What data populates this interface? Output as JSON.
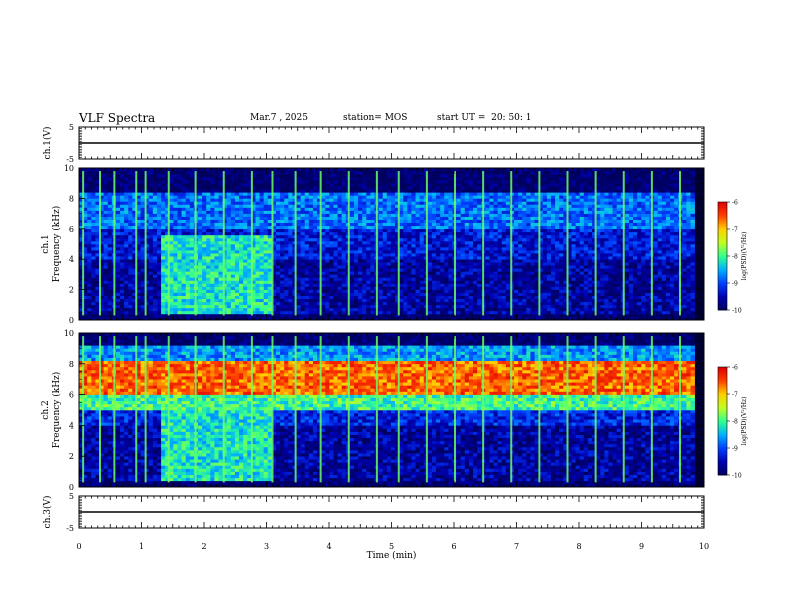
{
  "header": {
    "title": "VLF Spectra",
    "date": "Mar.7 , 2025",
    "station": "station= MOS",
    "start_ut": "start UT =  20: 50: 1"
  },
  "colors": {
    "spectrum_colormap": [
      "#000060",
      "#0000b0",
      "#0040ff",
      "#00b0ff",
      "#30ff90",
      "#c0ff20",
      "#ffd000",
      "#ff4000",
      "#e00000"
    ],
    "line": "#000000",
    "background": "#ffffff"
  },
  "chart_data": [
    {
      "type": "line",
      "panel": "ch1-voltage",
      "ylabel": "ch.1(V)",
      "ylim": [
        -5,
        5
      ],
      "yticks": [
        "5",
        "-5"
      ],
      "x": [
        0,
        10
      ],
      "values": [
        0,
        0
      ]
    },
    {
      "type": "heatmap",
      "panel": "ch1-spectrogram",
      "ylabel": "ch.1\nFrequency (kHz)",
      "ylim": [
        0,
        10
      ],
      "yticks": [
        "0",
        "2",
        "4",
        "6",
        "8",
        "10"
      ],
      "colorbar": {
        "label": "log(PSD)(V²/Hz)",
        "range": [
          -10,
          -6
        ],
        "ticks": [
          "-6",
          "-7",
          "-8",
          "-9",
          "-10"
        ]
      },
      "bands": [
        {
          "f_min_khz": 8.5,
          "f_max_khz": 10,
          "level": -10.0
        },
        {
          "f_min_khz": 6.0,
          "f_max_khz": 8.5,
          "level": -8.8
        },
        {
          "f_min_khz": 4.0,
          "f_max_khz": 6.0,
          "level": -9.3
        },
        {
          "f_min_khz": 0.5,
          "f_max_khz": 4.0,
          "level": -9.6
        },
        {
          "f_min_khz": 0,
          "f_max_khz": 0.5,
          "level": -10.0
        }
      ],
      "enhanced_region": {
        "t_min": 1.3,
        "t_max": 3.1,
        "f_min_khz": 0.5,
        "f_max_khz": 5.5,
        "level": -8.2
      },
      "burst_times_min": [
        0.05,
        0.32,
        0.55,
        0.9,
        1.05,
        1.42,
        1.85,
        2.3,
        2.75,
        3.08,
        3.45,
        3.85,
        4.3,
        4.75,
        5.1,
        5.55,
        6.0,
        6.45,
        6.9,
        7.35,
        7.8,
        8.25,
        8.7,
        9.15,
        9.6
      ]
    },
    {
      "type": "heatmap",
      "panel": "ch2-spectrogram",
      "ylabel": "ch.2\nFrequency (kHz)",
      "ylim": [
        0,
        10
      ],
      "yticks": [
        "0",
        "2",
        "4",
        "6",
        "8",
        "10"
      ],
      "colorbar": {
        "label": "log(PSD)(V²/Hz)",
        "range": [
          -10,
          -6
        ],
        "ticks": [
          "-6",
          "-7",
          "-8",
          "-9",
          "-10"
        ]
      },
      "bands": [
        {
          "f_min_khz": 9.3,
          "f_max_khz": 10,
          "level": -10.0
        },
        {
          "f_min_khz": 8.3,
          "f_max_khz": 9.3,
          "level": -8.6
        },
        {
          "f_min_khz": 6.0,
          "f_max_khz": 8.3,
          "level": -6.6
        },
        {
          "f_min_khz": 5.0,
          "f_max_khz": 6.0,
          "level": -8.0
        },
        {
          "f_min_khz": 4.0,
          "f_max_khz": 5.0,
          "level": -9.2
        },
        {
          "f_min_khz": 0.5,
          "f_max_khz": 4.0,
          "level": -9.6
        },
        {
          "f_min_khz": 0,
          "f_max_khz": 0.5,
          "level": -10.0
        }
      ],
      "enhanced_region": {
        "t_min": 1.3,
        "t_max": 3.1,
        "f_min_khz": 0.5,
        "f_max_khz": 5.5,
        "level": -8.2
      },
      "burst_times_min": [
        0.05,
        0.32,
        0.55,
        0.9,
        1.05,
        1.42,
        1.85,
        2.3,
        2.75,
        3.08,
        3.45,
        3.85,
        4.3,
        4.75,
        5.1,
        5.55,
        6.0,
        6.45,
        6.9,
        7.35,
        7.8,
        8.25,
        8.7,
        9.15,
        9.6
      ]
    },
    {
      "type": "line",
      "panel": "ch3-voltage",
      "ylabel": "ch.3(V)",
      "ylim": [
        -5,
        5
      ],
      "yticks": [
        "5",
        "-5"
      ],
      "x": [
        0,
        10
      ],
      "values": [
        0,
        0
      ]
    }
  ],
  "xaxis": {
    "label": "Time (min)",
    "ticks": [
      "0",
      "1",
      "2",
      "3",
      "4",
      "5",
      "6",
      "7",
      "8",
      "9",
      "10"
    ],
    "xlim": [
      0,
      10
    ],
    "data_end_min": 9.85
  }
}
